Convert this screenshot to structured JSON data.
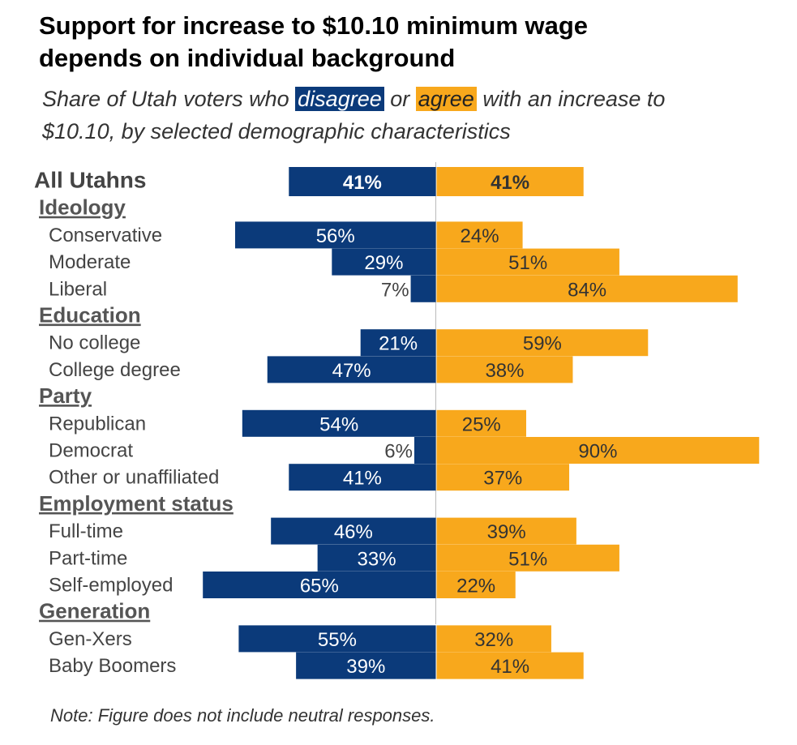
{
  "title_line1": "Support for increase to $10.10 minimum wage",
  "title_line2": "depends on individual background",
  "subtitle": {
    "pre": "Share of Utah voters who ",
    "disagree": "disagree",
    "mid": " or ",
    "agree": "agree",
    "post": " with an increase to",
    "line2": "$10.10, by selected demographic characteristics"
  },
  "note": "Note: Figure does not include neutral responses.",
  "colors": {
    "disagree": "#0b3a7a",
    "agree": "#f8a81c",
    "divider": "#bbbbbb"
  },
  "chart_data": {
    "type": "bar",
    "orientation": "horizontal-diverging",
    "series": [
      {
        "name": "disagree",
        "values": [
          41,
          56,
          29,
          7,
          21,
          47,
          54,
          6,
          41,
          46,
          33,
          65,
          55,
          39
        ]
      },
      {
        "name": "agree",
        "values": [
          41,
          24,
          51,
          84,
          59,
          38,
          25,
          90,
          37,
          39,
          51,
          22,
          32,
          41
        ]
      }
    ],
    "rows": [
      {
        "kind": "total",
        "label": "All Utahns",
        "disagree": 41,
        "agree": 41
      },
      {
        "kind": "header",
        "label": "Ideology"
      },
      {
        "kind": "item",
        "label": "Conservative",
        "disagree": 56,
        "agree": 24
      },
      {
        "kind": "item",
        "label": "Moderate",
        "disagree": 29,
        "agree": 51
      },
      {
        "kind": "item",
        "label": "Liberal",
        "disagree": 7,
        "agree": 84
      },
      {
        "kind": "header",
        "label": "Education"
      },
      {
        "kind": "item",
        "label": "No college",
        "disagree": 21,
        "agree": 59
      },
      {
        "kind": "item",
        "label": "College degree",
        "disagree": 47,
        "agree": 38
      },
      {
        "kind": "header",
        "label": "Party"
      },
      {
        "kind": "item",
        "label": "Republican",
        "disagree": 54,
        "agree": 25
      },
      {
        "kind": "item",
        "label": "Democrat",
        "disagree": 6,
        "agree": 90
      },
      {
        "kind": "item",
        "label": "Other or unaffiliated",
        "disagree": 41,
        "agree": 37
      },
      {
        "kind": "header",
        "label": "Employment status"
      },
      {
        "kind": "item",
        "label": "Full-time",
        "disagree": 46,
        "agree": 39
      },
      {
        "kind": "item",
        "label": "Part-time",
        "disagree": 33,
        "agree": 51
      },
      {
        "kind": "item",
        "label": "Self-employed",
        "disagree": 65,
        "agree": 22
      },
      {
        "kind": "header",
        "label": "Generation"
      },
      {
        "kind": "item",
        "label": "Gen-Xers",
        "disagree": 55,
        "agree": 32
      },
      {
        "kind": "item",
        "label": "Baby Boomers",
        "disagree": 39,
        "agree": 41
      }
    ],
    "value_suffix": "%",
    "xlim": [
      0,
      90
    ]
  }
}
